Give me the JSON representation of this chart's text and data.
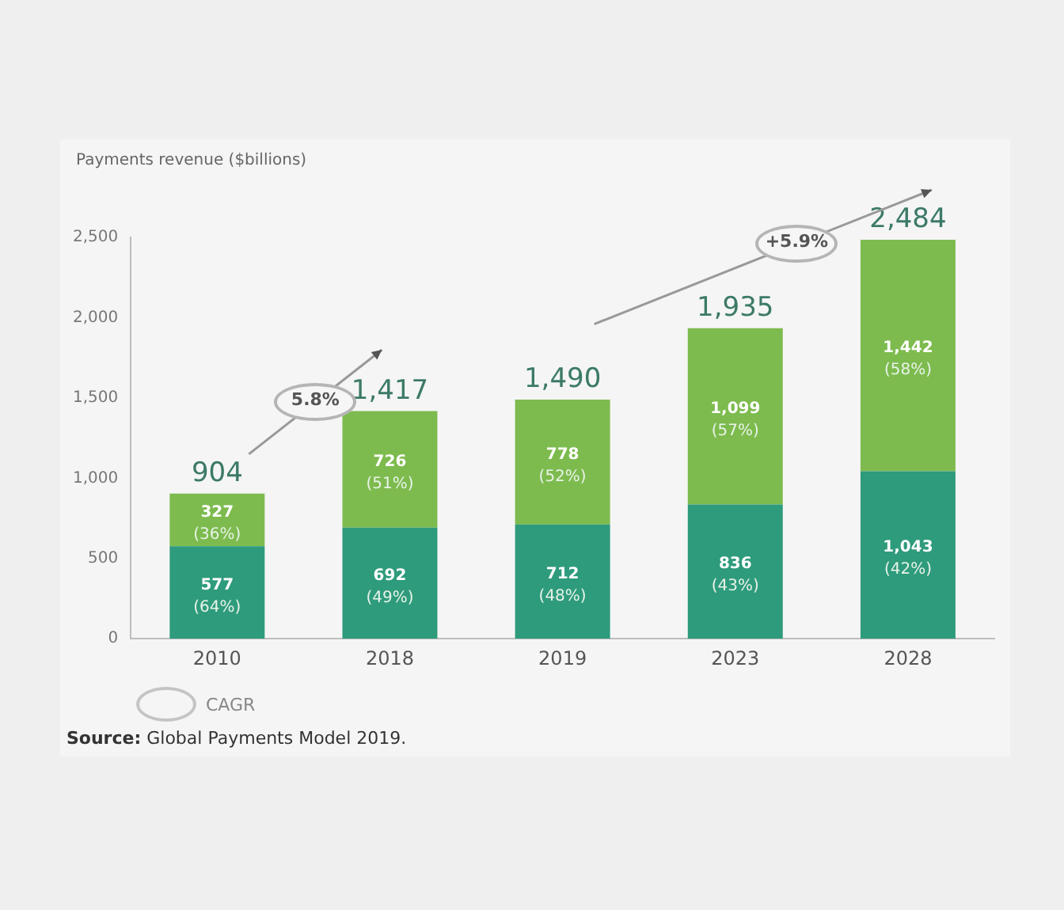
{
  "chart_data": {
    "type": "bar",
    "stacked": true,
    "ylabel": "Payments revenue ($billions)",
    "categories": [
      "2010",
      "2018",
      "2019",
      "2023",
      "2028"
    ],
    "series": [
      {
        "color": "#2e9b7c",
        "values": [
          577,
          692,
          712,
          836,
          1043
        ],
        "value_labels": [
          "577 (64%)",
          "692 (49%)",
          "712 (48%)",
          "836 (43%)",
          "1,043 (42%)"
        ]
      },
      {
        "color": "#7dbb4e",
        "values": [
          327,
          726,
          778,
          1099,
          1442
        ],
        "value_labels": [
          "327 (36%)",
          "726 (51%)",
          "778 (52%)",
          "1,099 (57%)",
          "1,442 (58%)"
        ]
      }
    ],
    "totals": [
      "904",
      "1,417",
      "1,490",
      "1,935",
      "2,484"
    ],
    "ylim": [
      0,
      2500
    ],
    "yticks": [
      0,
      500,
      {
        "value": 1000,
        "label": "1,000"
      },
      {
        "value": 1500,
        "label": "1,500"
      },
      {
        "value": 2000,
        "label": "2,000"
      },
      {
        "value": 2500,
        "label": "2,500"
      }
    ],
    "grid": false,
    "legend": false,
    "annotations": [
      "5.8%",
      "+5.9%",
      "CAGR",
      "Source: Global Payments Model 2019."
    ]
  }
}
